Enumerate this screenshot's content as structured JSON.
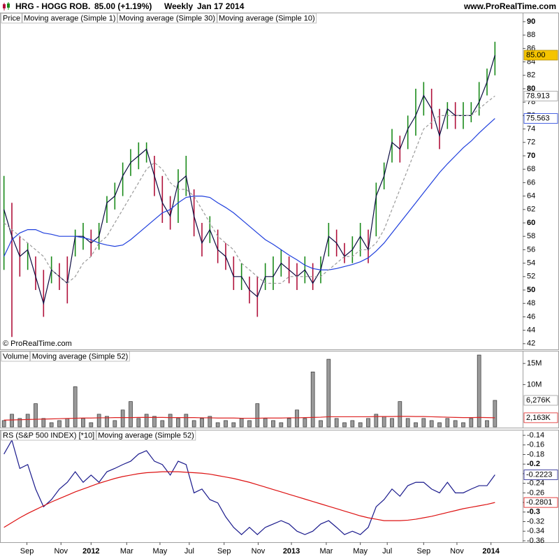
{
  "header": {
    "symbol": "HRG - HOGG ROB.",
    "quote": "85.00 (+1.19%)",
    "period": "Weekly",
    "date": "Jan 17 2014",
    "site": "www.ProRealTime.com"
  },
  "copyright": "© ProRealTime.com",
  "chart_data": [
    {
      "type": "ohlc",
      "x": [
        0,
        1,
        2,
        3,
        4,
        5,
        6,
        7,
        8,
        9,
        10,
        11,
        12,
        13,
        14,
        15,
        16,
        17,
        18,
        19,
        20,
        21,
        22,
        23,
        24,
        25,
        26,
        27,
        28,
        29,
        30,
        31,
        32,
        33,
        34,
        35,
        36,
        37,
        38,
        39,
        40,
        41,
        42,
        43,
        44,
        45,
        46,
        47,
        48,
        49,
        50,
        51,
        52,
        53,
        54,
        55,
        56,
        57,
        58,
        59,
        60,
        61,
        62
      ],
      "xlim": [
        -0.5,
        65.5
      ],
      "ylim": [
        41.15,
        91.35
      ],
      "yticks": [
        42,
        44,
        46,
        48,
        50,
        52,
        54,
        56,
        58,
        60,
        62,
        64,
        66,
        68,
        70,
        72,
        74,
        76,
        78,
        80,
        82,
        84,
        86,
        88,
        90
      ],
      "series": [
        {
          "name": "Price",
          "color": "#000000",
          "up_color": "#1a8a1a",
          "down_color": "#b0103a",
          "high": [
            67,
            63,
            58,
            57,
            55,
            53,
            55,
            54,
            55,
            59,
            60,
            59,
            60,
            64,
            66,
            69,
            71,
            72,
            72,
            70,
            67,
            64,
            68,
            70,
            65,
            60,
            61,
            59,
            57,
            55,
            54,
            52,
            52,
            54,
            55,
            56,
            55,
            54,
            55,
            54,
            55,
            60,
            59,
            57,
            58,
            60,
            59,
            66,
            69,
            74,
            73,
            76,
            80,
            81,
            80,
            77,
            78,
            78,
            78,
            78,
            81,
            83,
            87
          ],
          "low": [
            53,
            43,
            52,
            53,
            50,
            46,
            51,
            50,
            48,
            55,
            56,
            55,
            56,
            60,
            62,
            64,
            67,
            68,
            69,
            64,
            60,
            59,
            60,
            64,
            58,
            55,
            57,
            54,
            53,
            50,
            50,
            48,
            46,
            50,
            50,
            52,
            51,
            50,
            51,
            50,
            51,
            55,
            55,
            54,
            54,
            55,
            54,
            58,
            65,
            69,
            69,
            71,
            73,
            76,
            74,
            71,
            74,
            74,
            74,
            75,
            76,
            79,
            82
          ]
        },
        {
          "name": "Moving average (Simple 1)",
          "color": "#0a0a40",
          "last_label": "85.00",
          "last_label_fill": "#f5c400",
          "values": [
            62,
            58,
            55,
            56,
            52,
            48,
            53,
            52,
            51,
            58,
            58,
            57,
            58,
            63,
            64,
            67,
            69,
            70,
            71,
            67,
            63,
            61,
            66,
            67,
            61,
            57,
            59,
            56,
            55,
            52,
            52,
            50,
            49,
            52,
            52,
            54,
            53,
            52,
            53,
            51,
            53,
            58,
            57,
            55,
            56,
            58,
            56,
            64,
            67,
            72,
            71,
            74,
            76,
            79,
            77,
            73,
            77,
            76,
            76,
            76,
            78,
            81,
            85
          ]
        },
        {
          "name": "Moving average (Simple 30)",
          "color": "#1f3fdd",
          "last_label": "75.563",
          "values": [
            55,
            57.5,
            58.5,
            59,
            59,
            58.5,
            58.3,
            58,
            58,
            58,
            57.8,
            57.5,
            57,
            56.7,
            56.5,
            56.7,
            57.5,
            58.5,
            59.5,
            60.5,
            61.5,
            62,
            63,
            63.8,
            64,
            64,
            63.8,
            63,
            62.3,
            61.5,
            60.5,
            59.5,
            58.5,
            57.5,
            56.8,
            56,
            55.2,
            54.5,
            53.7,
            53.2,
            53,
            53,
            53.2,
            53.5,
            53.8,
            54.2,
            54.8,
            55.8,
            57,
            58.5,
            60,
            61.5,
            63,
            64.5,
            66,
            67.5,
            68.8,
            70,
            71.2,
            72.2,
            73.4,
            74.5,
            75.563
          ]
        },
        {
          "name": "Moving average (Simple 10)",
          "color": "#9a9a9a",
          "dash": true,
          "last_label": "78.913",
          "values": [
            60,
            59,
            58,
            57,
            56,
            55,
            53,
            52,
            51,
            52,
            54,
            55,
            57,
            58,
            60,
            62,
            64,
            66,
            68,
            69,
            68,
            66,
            65,
            65,
            64,
            62,
            60,
            58,
            57,
            56,
            54,
            53,
            52,
            51,
            51,
            51,
            52,
            52,
            52,
            52,
            52,
            53,
            54,
            55,
            55,
            56,
            56,
            57,
            59,
            62,
            65,
            68,
            71,
            74,
            75,
            76,
            76,
            76,
            76,
            76,
            77,
            78,
            78.913
          ]
        }
      ]
    },
    {
      "type": "bar",
      "x": [
        0,
        1,
        2,
        3,
        4,
        5,
        6,
        7,
        8,
        9,
        10,
        11,
        12,
        13,
        14,
        15,
        16,
        17,
        18,
        19,
        20,
        21,
        22,
        23,
        24,
        25,
        26,
        27,
        28,
        29,
        30,
        31,
        32,
        33,
        34,
        35,
        36,
        37,
        38,
        39,
        40,
        41,
        42,
        43,
        44,
        45,
        46,
        47,
        48,
        49,
        50,
        51,
        52,
        53,
        54,
        55,
        56,
        57,
        58,
        59,
        60,
        61,
        62
      ],
      "xlim": [
        -0.5,
        65.5
      ],
      "ylim": [
        -0.17,
        18
      ],
      "yticks": [
        {
          "value": 15,
          "label": "15M"
        },
        {
          "value": 10,
          "label": "10M"
        }
      ],
      "series": [
        {
          "name": "Volume",
          "color": "#9a9a9a",
          "last_label": "6,276K",
          "values": [
            1.5,
            3,
            2,
            3,
            5.5,
            2,
            1,
            1.5,
            2,
            9.5,
            2,
            1,
            3,
            2.5,
            1.5,
            4,
            6,
            2,
            3,
            2.5,
            1.5,
            3,
            2,
            3,
            1.5,
            2,
            2.5,
            1,
            1.5,
            1,
            2,
            1.5,
            5.5,
            2,
            1.5,
            1,
            2,
            4,
            2,
            13,
            1.5,
            16,
            2,
            1,
            1.5,
            1,
            2,
            3,
            2.5,
            2,
            6,
            2,
            1,
            2,
            1.5,
            1,
            2,
            1.5,
            1,
            2,
            17,
            1.5,
            6.276
          ]
        },
        {
          "name": "Moving average (Simple 52)",
          "color": "#dd2222",
          "last_label": "2,163K",
          "values": [
            1.6,
            1.65,
            1.7,
            1.75,
            1.8,
            1.85,
            1.9,
            1.95,
            2,
            2.05,
            2.1,
            2.1,
            2.15,
            2.15,
            2.2,
            2.2,
            2.2,
            2.25,
            2.25,
            2.25,
            2.25,
            2.2,
            2.2,
            2.2,
            2.2,
            2.15,
            2.15,
            2.1,
            2.1,
            2.1,
            2.05,
            2.05,
            2.05,
            2.1,
            2.1,
            2.1,
            2.15,
            2.15,
            2.2,
            2.25,
            2.3,
            2.4,
            2.4,
            2.4,
            2.4,
            2.4,
            2.4,
            2.45,
            2.45,
            2.45,
            2.5,
            2.5,
            2.45,
            2.45,
            2.4,
            2.35,
            2.3,
            2.25,
            2.2,
            2.2,
            2.25,
            2.2,
            2.163
          ]
        }
      ]
    },
    {
      "type": "line",
      "x": [
        0,
        1,
        2,
        3,
        4,
        5,
        6,
        7,
        8,
        9,
        10,
        11,
        12,
        13,
        14,
        15,
        16,
        17,
        18,
        19,
        20,
        21,
        22,
        23,
        24,
        25,
        26,
        27,
        28,
        29,
        30,
        31,
        32,
        33,
        34,
        35,
        36,
        37,
        38,
        39,
        40,
        41,
        42,
        43,
        44,
        45,
        46,
        47,
        48,
        49,
        50,
        51,
        52,
        53,
        54,
        55,
        56,
        57,
        58,
        59,
        60,
        61,
        62
      ],
      "xlim": [
        -0.5,
        65.5
      ],
      "ylim": [
        -0.363,
        -0.1283
      ],
      "yticks": [
        -0.14,
        -0.16,
        -0.18,
        -0.2,
        -0.22,
        -0.24,
        -0.26,
        -0.28,
        -0.3,
        -0.32,
        -0.34,
        -0.36
      ],
      "xticks": [
        {
          "value": 2.9,
          "label": "Sep"
        },
        {
          "value": 7.2,
          "label": "Nov"
        },
        {
          "value": 11,
          "label": "2012"
        },
        {
          "value": 15.5,
          "label": "Mar"
        },
        {
          "value": 19.7,
          "label": "May"
        },
        {
          "value": 23.4,
          "label": "Jul"
        },
        {
          "value": 27.8,
          "label": "Sep"
        },
        {
          "value": 32.1,
          "label": "Nov"
        },
        {
          "value": 36.3,
          "label": "2013"
        },
        {
          "value": 40.7,
          "label": "Mar"
        },
        {
          "value": 45,
          "label": "May"
        },
        {
          "value": 48.4,
          "label": "Jul"
        },
        {
          "value": 53,
          "label": "Sep"
        },
        {
          "value": 57.2,
          "label": "Nov"
        },
        {
          "value": 61.5,
          "label": "2014"
        }
      ],
      "series": [
        {
          "name": "RS (S&P 500 INDEX) [*10]",
          "color": "#1a1a8c",
          "last_label": "-0.2223",
          "values": [
            -0.179,
            -0.15,
            -0.209,
            -0.201,
            -0.252,
            -0.289,
            -0.274,
            -0.252,
            -0.238,
            -0.216,
            -0.238,
            -0.223,
            -0.238,
            -0.216,
            -0.209,
            -0.201,
            -0.194,
            -0.179,
            -0.172,
            -0.194,
            -0.201,
            -0.223,
            -0.194,
            -0.201,
            -0.26,
            -0.252,
            -0.274,
            -0.281,
            -0.31,
            -0.332,
            -0.347,
            -0.332,
            -0.347,
            -0.332,
            -0.325,
            -0.318,
            -0.325,
            -0.34,
            -0.347,
            -0.34,
            -0.325,
            -0.318,
            -0.332,
            -0.347,
            -0.34,
            -0.347,
            -0.332,
            -0.289,
            -0.274,
            -0.252,
            -0.267,
            -0.245,
            -0.238,
            -0.238,
            -0.252,
            -0.26,
            -0.238,
            -0.26,
            -0.26,
            -0.252,
            -0.245,
            -0.245,
            -0.2223
          ]
        },
        {
          "name": "Moving average (Simple 52)",
          "color": "#dd1111",
          "last_label": "-0.2801",
          "values": [
            -0.332,
            -0.322,
            -0.312,
            -0.303,
            -0.295,
            -0.287,
            -0.279,
            -0.272,
            -0.265,
            -0.258,
            -0.252,
            -0.246,
            -0.24,
            -0.235,
            -0.23,
            -0.226,
            -0.223,
            -0.22,
            -0.218,
            -0.217,
            -0.216,
            -0.216,
            -0.216,
            -0.217,
            -0.218,
            -0.219,
            -0.221,
            -0.224,
            -0.227,
            -0.23,
            -0.234,
            -0.238,
            -0.243,
            -0.248,
            -0.253,
            -0.258,
            -0.263,
            -0.268,
            -0.273,
            -0.278,
            -0.283,
            -0.288,
            -0.293,
            -0.298,
            -0.303,
            -0.308,
            -0.312,
            -0.315,
            -0.318,
            -0.318,
            -0.318,
            -0.317,
            -0.315,
            -0.312,
            -0.309,
            -0.305,
            -0.301,
            -0.297,
            -0.293,
            -0.29,
            -0.287,
            -0.284,
            -0.2801
          ]
        }
      ]
    }
  ]
}
